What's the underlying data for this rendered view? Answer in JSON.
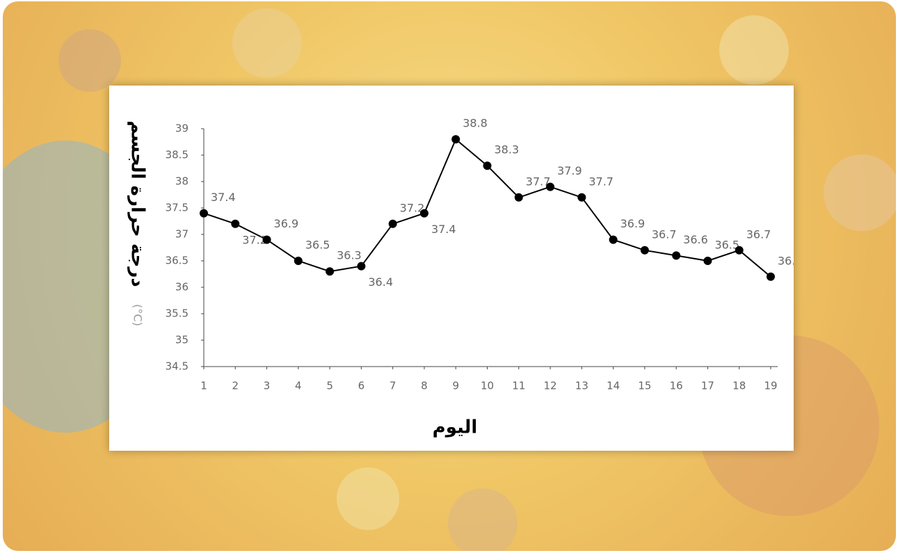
{
  "chart_data": {
    "type": "line",
    "y_label": "درجة حرارة الجسم",
    "y_unit": "(°C)",
    "x_label": "اليوم",
    "x": [
      1,
      2,
      3,
      4,
      5,
      6,
      7,
      8,
      9,
      10,
      11,
      12,
      13,
      14,
      15,
      16,
      17,
      18,
      19
    ],
    "values": [
      37.4,
      37.2,
      36.9,
      36.5,
      36.3,
      36.4,
      37.2,
      37.4,
      38.8,
      38.3,
      37.7,
      37.9,
      37.7,
      36.9,
      36.7,
      36.6,
      36.5,
      36.7,
      36.2
    ],
    "color": "#000000",
    "xlim": [
      1,
      19
    ],
    "xticks": [
      1,
      2,
      3,
      4,
      5,
      6,
      7,
      8,
      9,
      10,
      11,
      12,
      13,
      14,
      15,
      16,
      17,
      18,
      19
    ],
    "ylim": [
      34.5,
      39
    ],
    "yticks": [
      34.5,
      35,
      35.5,
      36,
      36.5,
      37,
      37.5,
      38,
      38.5,
      39
    ]
  }
}
